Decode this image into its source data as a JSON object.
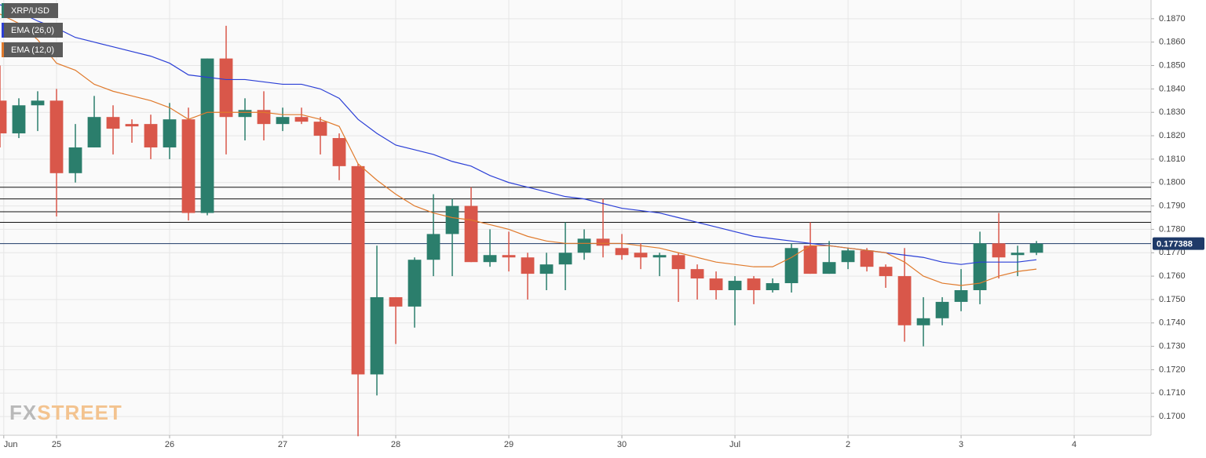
{
  "chart_data": {
    "type": "candlestick",
    "legend": "upper left",
    "grid": true,
    "up_color": "#2b7e6c",
    "down_color": "#d9574a",
    "watermark": [
      "FX",
      "STREET"
    ],
    "x": [
      0,
      1,
      2,
      3,
      4,
      5,
      6,
      7,
      8,
      9,
      10,
      11,
      12,
      13,
      14,
      15,
      16,
      17,
      18,
      19,
      20,
      21,
      22,
      23,
      24,
      25,
      26,
      27,
      28,
      29,
      30,
      31,
      32,
      33,
      34,
      35,
      36,
      37,
      38,
      39,
      40,
      41,
      42,
      43,
      44,
      45,
      46,
      47,
      48,
      49,
      50,
      51,
      52,
      53,
      54,
      55
    ],
    "xlim": [
      0,
      61.08
    ],
    "xticks": [
      {
        "value": 0.2,
        "label": "Jun"
      },
      {
        "value": 3,
        "label": "25"
      },
      {
        "value": 9,
        "label": "26"
      },
      {
        "value": 15,
        "label": "27"
      },
      {
        "value": 21,
        "label": "28"
      },
      {
        "value": 27,
        "label": "29"
      },
      {
        "value": 33,
        "label": "30"
      },
      {
        "value": 39,
        "label": "Jul"
      },
      {
        "value": 45,
        "label": "2"
      },
      {
        "value": 51,
        "label": "3"
      },
      {
        "value": 57,
        "label": "4"
      }
    ],
    "ylim": [
      0.1692,
      0.1878
    ],
    "yticks": [
      {
        "value": 0.17,
        "label": "0.1700"
      },
      {
        "value": 0.171,
        "label": "0.1710"
      },
      {
        "value": 0.172,
        "label": "0.1720"
      },
      {
        "value": 0.173,
        "label": "0.1730"
      },
      {
        "value": 0.174,
        "label": "0.1740"
      },
      {
        "value": 0.175,
        "label": "0.1750"
      },
      {
        "value": 0.176,
        "label": "0.1760"
      },
      {
        "value": 0.177,
        "label": "0.1770"
      },
      {
        "value": 0.178,
        "label": "0.1780"
      },
      {
        "value": 0.179,
        "label": "0.1790"
      },
      {
        "value": 0.18,
        "label": "0.1800"
      },
      {
        "value": 0.181,
        "label": "0.1810"
      },
      {
        "value": 0.182,
        "label": "0.1820"
      },
      {
        "value": 0.183,
        "label": "0.1830"
      },
      {
        "value": 0.184,
        "label": "0.1840"
      },
      {
        "value": 0.185,
        "label": "0.1850"
      },
      {
        "value": 0.186,
        "label": "0.1860"
      },
      {
        "value": 0.187,
        "label": "0.1870"
      }
    ],
    "levels": [
      0.1798,
      0.1793,
      0.17875,
      0.1783
    ],
    "last_price": 0.177388,
    "last_price_color": "#1f3a68",
    "candles": {
      "name": "XRP/USD",
      "color": "#2b7e6c",
      "open": [
        0.1835,
        0.1821,
        0.1833,
        0.1835,
        0.1804,
        0.1815,
        0.1828,
        0.1825,
        0.1825,
        0.1815,
        0.1827,
        0.1787,
        0.1853,
        0.1828,
        0.1831,
        0.1825,
        0.1828,
        0.1826,
        0.1819,
        0.1807,
        0.1718,
        0.1751,
        0.1747,
        0.1767,
        0.1778,
        0.179,
        0.1766,
        0.1769,
        0.1768,
        0.1761,
        0.1765,
        0.177,
        0.1776,
        0.1772,
        0.177,
        0.1768,
        0.1769,
        0.1763,
        0.1759,
        0.1754,
        0.1759,
        0.1754,
        0.1757,
        0.1773,
        0.1761,
        0.1766,
        0.1771,
        0.1764,
        0.176,
        0.1739,
        0.1742,
        0.1749,
        0.1754,
        0.1774,
        0.1769,
        0.177
      ],
      "high": [
        0.185,
        0.1836,
        0.1839,
        0.184,
        0.1825,
        0.1837,
        0.1833,
        0.1827,
        0.1829,
        0.1834,
        0.1832,
        0.1853,
        0.1867,
        0.1836,
        0.1839,
        0.1832,
        0.1832,
        0.1828,
        0.1821,
        0.1808,
        0.1773,
        0.1751,
        0.1768,
        0.1795,
        0.1793,
        0.1798,
        0.178,
        0.1779,
        0.177,
        0.177,
        0.1783,
        0.178,
        0.1793,
        0.1778,
        0.1774,
        0.177,
        0.177,
        0.1765,
        0.1762,
        0.176,
        0.176,
        0.1759,
        0.1774,
        0.1783,
        0.1775,
        0.1772,
        0.1772,
        0.1765,
        0.1772,
        0.1751,
        0.1751,
        0.1763,
        0.1779,
        0.1787,
        0.1773,
        0.1775
      ],
      "low": [
        0.1815,
        0.1819,
        0.1822,
        0.17855,
        0.18,
        0.1815,
        0.1812,
        0.1817,
        0.181,
        0.181,
        0.17838,
        0.1786,
        0.1812,
        0.1818,
        0.1818,
        0.1822,
        0.1825,
        0.1812,
        0.1801,
        0.16916,
        0.1709,
        0.1731,
        0.1738,
        0.176,
        0.176,
        0.1766,
        0.1764,
        0.1762,
        0.175,
        0.1754,
        0.1754,
        0.1767,
        0.1768,
        0.1767,
        0.1763,
        0.176,
        0.1749,
        0.175,
        0.175,
        0.1739,
        0.1748,
        0.1753,
        0.1753,
        0.1761,
        0.1761,
        0.1763,
        0.1762,
        0.1755,
        0.1732,
        0.173,
        0.1739,
        0.1745,
        0.1748,
        0.1759,
        0.176,
        0.1769
      ],
      "close": [
        0.1821,
        0.1833,
        0.1835,
        0.1804,
        0.1815,
        0.1828,
        0.1823,
        0.1824,
        0.1815,
        0.1827,
        0.1787,
        0.1853,
        0.1828,
        0.1831,
        0.1825,
        0.1828,
        0.1826,
        0.182,
        0.1807,
        0.1718,
        0.1751,
        0.1747,
        0.1767,
        0.1778,
        0.179,
        0.1766,
        0.1769,
        0.1768,
        0.1761,
        0.1765,
        0.177,
        0.1776,
        0.1773,
        0.1769,
        0.1768,
        0.1769,
        0.1763,
        0.1759,
        0.1754,
        0.1758,
        0.1754,
        0.1757,
        0.1772,
        0.1761,
        0.1766,
        0.1771,
        0.1764,
        0.176,
        0.1739,
        0.1742,
        0.1749,
        0.1754,
        0.1774,
        0.1768,
        0.177,
        0.177388
      ]
    },
    "series": [
      {
        "name": "EMA (26,0)",
        "color": "#2b3fd6",
        "values": [
          0.1876,
          0.1873,
          0.1869,
          0.1866,
          0.1862,
          0.186,
          0.1858,
          0.1856,
          0.1854,
          0.1851,
          0.1846,
          0.1845,
          0.1844,
          0.1844,
          0.1843,
          0.1842,
          0.1842,
          0.184,
          0.1836,
          0.1827,
          0.1821,
          0.1816,
          0.1814,
          0.1812,
          0.1809,
          0.1807,
          0.1803,
          0.18,
          0.1798,
          0.1796,
          0.1794,
          0.1793,
          0.1791,
          0.1789,
          0.1788,
          0.1787,
          0.1785,
          0.1783,
          0.1781,
          0.1779,
          0.1777,
          0.1776,
          0.1775,
          0.1774,
          0.1773,
          0.1772,
          0.1771,
          0.177,
          0.1769,
          0.1768,
          0.1766,
          0.1765,
          0.1766,
          0.1766,
          0.1766,
          0.1767
        ]
      },
      {
        "name": "EMA (12,0)",
        "color": "#e07a2c",
        "values": [
          0.1872,
          0.1868,
          0.1861,
          0.1851,
          0.1848,
          0.1842,
          0.1839,
          0.1837,
          0.1835,
          0.1832,
          0.1827,
          0.183,
          0.183,
          0.183,
          0.183,
          0.1829,
          0.1829,
          0.1827,
          0.1824,
          0.1808,
          0.1801,
          0.1795,
          0.179,
          0.1787,
          0.1785,
          0.1784,
          0.1782,
          0.178,
          0.1777,
          0.1775,
          0.1774,
          0.1774,
          0.1774,
          0.1774,
          0.1773,
          0.1772,
          0.177,
          0.1768,
          0.1766,
          0.1765,
          0.1764,
          0.1764,
          0.1768,
          0.1773,
          0.1773,
          0.1772,
          0.1771,
          0.177,
          0.1766,
          0.176,
          0.1757,
          0.1756,
          0.1757,
          0.176,
          0.1762,
          0.1763
        ]
      }
    ]
  }
}
